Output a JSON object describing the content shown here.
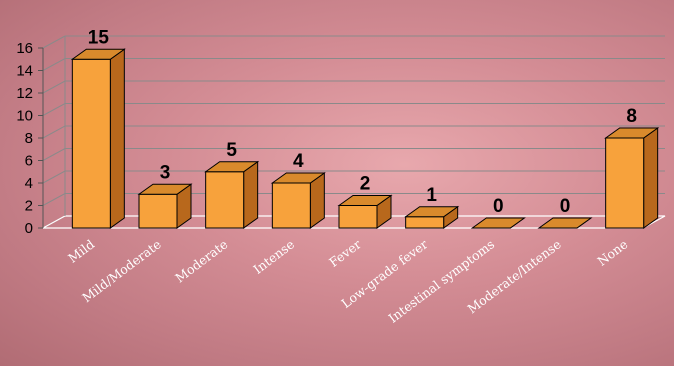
{
  "chart_data": {
    "type": "bar",
    "categories": [
      "Mild",
      "Mild/Moderate",
      "Moderate",
      "Intense",
      "Fever",
      "Low-grade fever",
      "Intestinal symptoms",
      "Moderate/Intense",
      "None"
    ],
    "values": [
      15,
      3,
      5,
      4,
      2,
      1,
      0,
      0,
      8
    ],
    "ylim": [
      0,
      16
    ],
    "yticks": [
      "0",
      "2",
      "4",
      "6",
      "8",
      "10",
      "12",
      "14",
      "16"
    ],
    "title": "",
    "xlabel": "",
    "ylabel": "",
    "grid": true,
    "bar_color": "#f7a23c",
    "bar_side_color": "#b8681c",
    "bar_top_color": "#d98a2c"
  }
}
